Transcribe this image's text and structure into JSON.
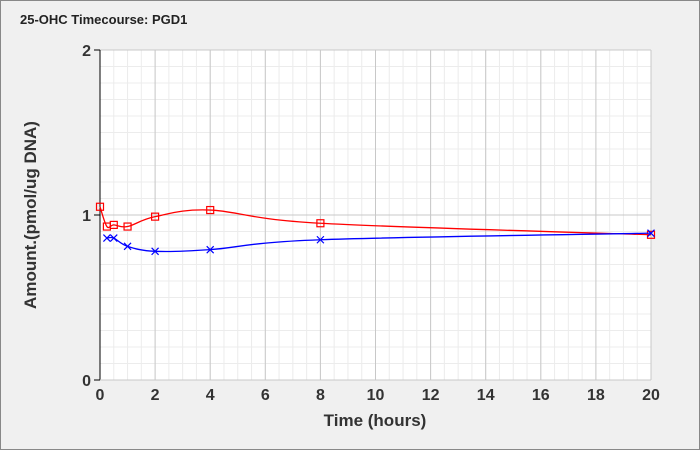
{
  "chart_data": {
    "type": "line",
    "title": "25-OHC Timecourse: PGD1",
    "xlabel": "Time (hours)",
    "ylabel": "Amount.(pmol/ug DNA)",
    "xlim": [
      0,
      20
    ],
    "ylim": [
      0,
      2
    ],
    "xticks": [
      0,
      2,
      4,
      6,
      8,
      10,
      12,
      14,
      16,
      18,
      20
    ],
    "yticks": [
      0,
      1,
      2
    ],
    "grid": true,
    "series": [
      {
        "name": "red-series",
        "color": "#ff0000",
        "marker": "square",
        "x": [
          0,
          0.25,
          0.5,
          1,
          2,
          4,
          8,
          20
        ],
        "y": [
          1.05,
          0.93,
          0.94,
          0.93,
          0.99,
          1.03,
          0.95,
          0.88
        ]
      },
      {
        "name": "blue-series",
        "color": "#0000ff",
        "marker": "x",
        "x": [
          0.25,
          0.5,
          1,
          2,
          4,
          8,
          20
        ],
        "y": [
          0.86,
          0.86,
          0.81,
          0.78,
          0.79,
          0.85,
          0.89
        ]
      }
    ]
  }
}
